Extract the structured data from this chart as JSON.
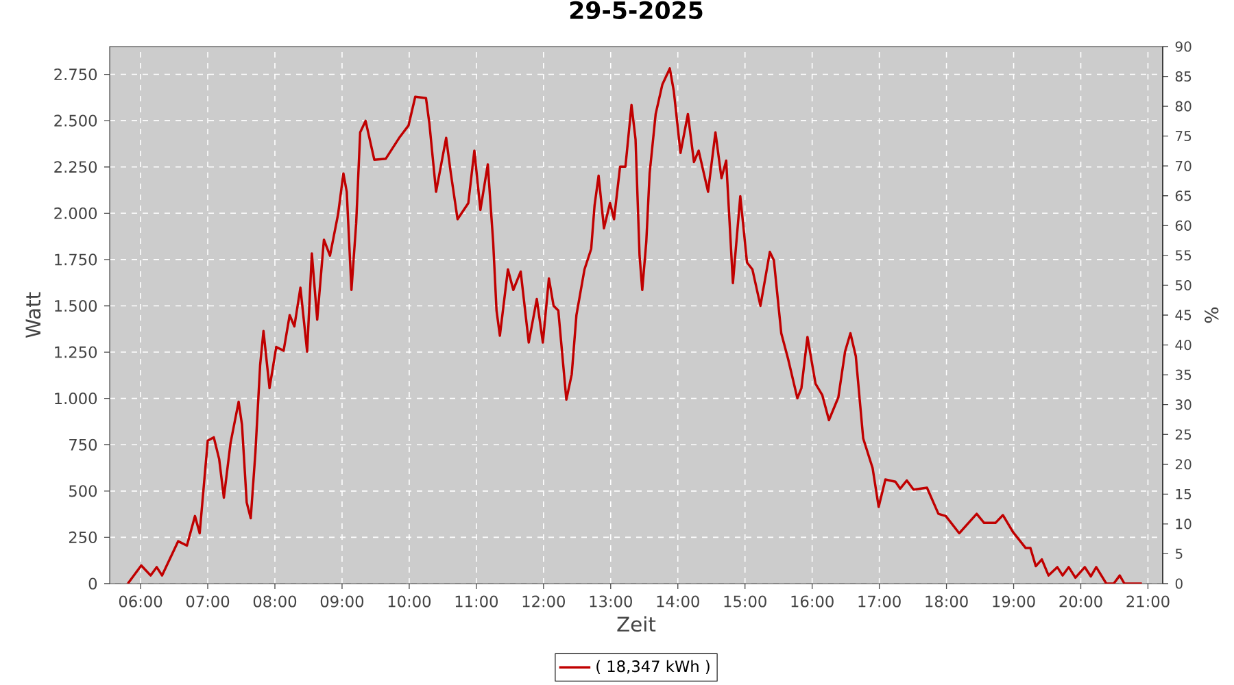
{
  "chart_data": {
    "type": "line",
    "title": "29-5-2025",
    "xlabel": "Zeit",
    "ylabel": "Watt",
    "y2label": "%",
    "x": [
      5.81,
      6.01,
      6.15,
      6.24,
      6.32,
      6.56,
      6.69,
      6.81,
      6.88,
      7.0,
      7.09,
      7.17,
      7.24,
      7.34,
      7.46,
      7.51,
      7.58,
      7.64,
      7.71,
      7.78,
      7.83,
      7.92,
      8.02,
      8.13,
      8.22,
      8.29,
      8.38,
      8.48,
      8.55,
      8.63,
      8.73,
      8.82,
      8.94,
      9.02,
      9.07,
      9.14,
      9.21,
      9.27,
      9.35,
      9.48,
      9.65,
      9.86,
      9.99,
      10.09,
      10.25,
      10.3,
      10.4,
      10.55,
      10.62,
      10.72,
      10.88,
      10.97,
      11.06,
      11.17,
      11.25,
      11.3,
      11.35,
      11.47,
      11.55,
      11.66,
      11.78,
      11.9,
      11.99,
      12.08,
      12.15,
      12.22,
      12.34,
      12.42,
      12.49,
      12.61,
      12.71,
      12.76,
      12.82,
      12.9,
      12.99,
      13.05,
      13.14,
      13.22,
      13.31,
      13.37,
      13.43,
      13.47,
      13.53,
      13.58,
      13.67,
      13.77,
      13.88,
      13.94,
      14.04,
      14.15,
      14.24,
      14.31,
      14.45,
      14.56,
      14.65,
      14.72,
      14.82,
      14.93,
      15.03,
      15.11,
      15.23,
      15.37,
      15.43,
      15.54,
      15.64,
      15.78,
      15.84,
      15.93,
      16.05,
      16.15,
      16.25,
      16.39,
      16.49,
      16.57,
      16.65,
      16.76,
      16.9,
      16.99,
      17.09,
      17.24,
      17.31,
      17.41,
      17.51,
      17.71,
      17.88,
      17.99,
      18.19,
      18.45,
      18.56,
      18.73,
      18.84,
      18.99,
      19.18,
      19.25,
      19.33,
      19.42,
      19.52,
      19.65,
      19.73,
      19.82,
      19.92,
      20.06,
      20.15,
      20.23,
      20.38,
      20.49,
      20.58,
      20.65,
      20.91
    ],
    "series": [
      {
        "name": "( 18,347 kWh )",
        "color": "#c00000",
        "values": [
          0,
          98,
          44,
          89,
          44,
          229,
          205,
          365,
          272,
          772,
          790,
          673,
          464,
          760,
          982,
          858,
          439,
          353,
          710,
          1179,
          1364,
          1056,
          1278,
          1258,
          1450,
          1389,
          1598,
          1253,
          1783,
          1426,
          1857,
          1771,
          1993,
          2215,
          2116,
          1586,
          1944,
          2437,
          2499,
          2289,
          2294,
          2412,
          2474,
          2629,
          2622,
          2486,
          2116,
          2407,
          2215,
          1968,
          2055,
          2338,
          2018,
          2264,
          1845,
          1475,
          1339,
          1697,
          1586,
          1685,
          1302,
          1537,
          1302,
          1648,
          1500,
          1475,
          994,
          1130,
          1450,
          1697,
          1808,
          2042,
          2203,
          1919,
          2055,
          1968,
          2252,
          2252,
          2585,
          2400,
          1771,
          1586,
          1845,
          2215,
          2536,
          2696,
          2782,
          2659,
          2326,
          2536,
          2277,
          2338,
          2116,
          2437,
          2190,
          2284,
          1623,
          2092,
          1734,
          1697,
          1500,
          1791,
          1746,
          1352,
          1216,
          1001,
          1056,
          1332,
          1080,
          1019,
          883,
          1006,
          1253,
          1352,
          1228,
          784,
          624,
          414,
          562,
          550,
          513,
          557,
          508,
          518,
          377,
          365,
          272,
          377,
          328,
          328,
          370,
          279,
          192,
          192,
          94,
          131,
          44,
          89,
          44,
          89,
          32,
          89,
          39,
          89,
          0,
          0,
          44,
          0,
          0
        ]
      }
    ],
    "xlim": [
      5.54,
      21.22
    ],
    "xticks": [
      {
        "value": 6,
        "label": "06:00"
      },
      {
        "value": 7,
        "label": "07:00"
      },
      {
        "value": 8,
        "label": "08:00"
      },
      {
        "value": 9,
        "label": "09:00"
      },
      {
        "value": 10,
        "label": "10:00"
      },
      {
        "value": 11,
        "label": "11:00"
      },
      {
        "value": 12,
        "label": "12:00"
      },
      {
        "value": 13,
        "label": "13:00"
      },
      {
        "value": 14,
        "label": "14:00"
      },
      {
        "value": 15,
        "label": "15:00"
      },
      {
        "value": 16,
        "label": "16:00"
      },
      {
        "value": 17,
        "label": "17:00"
      },
      {
        "value": 18,
        "label": "18:00"
      },
      {
        "value": 19,
        "label": "19:00"
      },
      {
        "value": 20,
        "label": "20:00"
      },
      {
        "value": 21,
        "label": "21:00"
      }
    ],
    "ylim": [
      0,
      2900
    ],
    "yticks": [
      0,
      250,
      500,
      750,
      {
        "value": 1000,
        "label": "1.000"
      },
      {
        "value": 1250,
        "label": "1.250"
      },
      {
        "value": 1500,
        "label": "1.500"
      },
      {
        "value": 1750,
        "label": "1.750"
      },
      {
        "value": 2000,
        "label": "2.000"
      },
      {
        "value": 2250,
        "label": "2.250"
      },
      {
        "value": 2500,
        "label": "2.500"
      },
      {
        "value": 2750,
        "label": "2.750"
      }
    ],
    "y2lim": [
      0,
      90
    ],
    "y2ticks": [
      0,
      5,
      10,
      15,
      20,
      25,
      30,
      35,
      40,
      45,
      50,
      55,
      60,
      65,
      70,
      75,
      80,
      85,
      90
    ],
    "grid": true,
    "legend": "bottom"
  }
}
